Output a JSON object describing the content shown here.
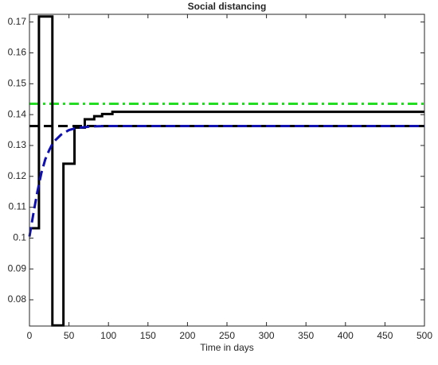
{
  "chart_data": {
    "type": "line",
    "title": "Social distancing",
    "xlabel": "Time in days",
    "xlim": [
      0,
      500
    ],
    "xticks": [
      0,
      50,
      100,
      150,
      200,
      250,
      300,
      350,
      400,
      450,
      500
    ],
    "ylim": [
      0.0715,
      0.1725
    ],
    "yticks": [
      0.08,
      0.09,
      0.1,
      0.11,
      0.12,
      0.13,
      0.14,
      0.15,
      0.16,
      0.17
    ],
    "series": [
      {
        "color": "#22dd22",
        "style": "dashdot",
        "x": [
          0,
          500
        ],
        "values": [
          0.1435,
          0.1435
        ]
      },
      {
        "color": "#000000",
        "style": "solid",
        "x": [
          0,
          12,
          12,
          29,
          29,
          43,
          43,
          57,
          57,
          70,
          70,
          82,
          82,
          92,
          92,
          105,
          105,
          500
        ],
        "values": [
          0.1032,
          0.1032,
          0.1718,
          0.1718,
          0.0717,
          0.0717,
          0.1241,
          0.1241,
          0.1358,
          0.1358,
          0.1385,
          0.1385,
          0.1395,
          0.1395,
          0.1402,
          0.1402,
          0.1409,
          0.1409
        ]
      },
      {
        "color": "#000000",
        "style": "dashed",
        "x": [
          0,
          500
        ],
        "values": [
          0.1363,
          0.1363
        ]
      },
      {
        "color": "#1010b0",
        "style": "dashed",
        "x": [
          0,
          5,
          10,
          15,
          20,
          25,
          30,
          40,
          50,
          60,
          80,
          100,
          500
        ],
        "values": [
          0.1005,
          0.108,
          0.115,
          0.121,
          0.1255,
          0.1285,
          0.131,
          0.1335,
          0.135,
          0.1357,
          0.1362,
          0.1363,
          0.1363
        ]
      }
    ]
  }
}
